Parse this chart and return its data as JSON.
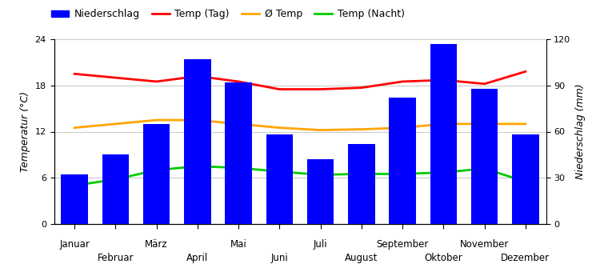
{
  "months": [
    "Januar",
    "Februar",
    "März",
    "April",
    "Mai",
    "Juni",
    "Juli",
    "August",
    "September",
    "Oktober",
    "November",
    "Dezember"
  ],
  "niederschlag": [
    32,
    45,
    65,
    107,
    92,
    58,
    42,
    52,
    82,
    117,
    88,
    58
  ],
  "temp_tag": [
    19.5,
    19.0,
    18.5,
    19.2,
    18.5,
    17.5,
    17.5,
    17.7,
    18.5,
    18.7,
    18.2,
    19.8
  ],
  "temp_avg": [
    12.5,
    13.0,
    13.5,
    13.5,
    13.0,
    12.5,
    12.2,
    12.3,
    12.5,
    13.0,
    13.0,
    13.0
  ],
  "temp_nacht": [
    5.0,
    5.8,
    7.0,
    7.5,
    7.3,
    6.8,
    6.4,
    6.5,
    6.5,
    6.7,
    7.2,
    5.5
  ],
  "bar_color": "#0000ff",
  "line_tag_color": "#ff0000",
  "line_avg_color": "#ffa500",
  "line_nacht_color": "#00cc00",
  "ylabel_left": "Temperatur (°C)",
  "ylabel_right": "Niederschlag (mm)",
  "ylim_left": [
    0,
    24
  ],
  "ylim_right": [
    0,
    120
  ],
  "yticks_left": [
    0,
    6,
    12,
    18,
    24
  ],
  "yticks_right": [
    0,
    30,
    60,
    90,
    120
  ],
  "legend_labels": [
    "Niederschlag",
    "Temp (Tag)",
    "Ø Temp",
    "Temp (Nacht)"
  ],
  "background_color": "#ffffff",
  "grid_color": "#cccccc"
}
